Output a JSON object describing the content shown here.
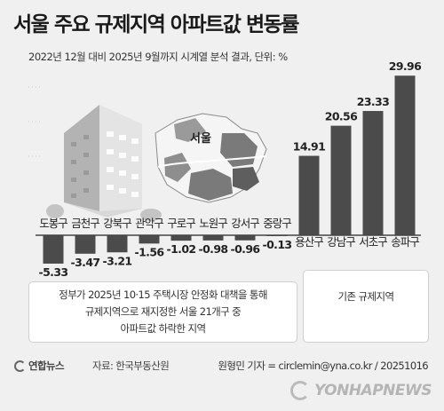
{
  "header": {
    "title": "서울 주요 규제지역 아파트값 변동률",
    "subtitle": "2022년 12월 대비 2025년 9월까지 시계열 분석 결과, 단위: %"
  },
  "colors": {
    "bar": "#4b4b4b",
    "baseline": "#444444",
    "building": "#bdbdbd",
    "map": "#8a8a8a",
    "map_highlight": "#f2f2f2"
  },
  "illustration": {
    "map_label": "서울",
    "map_icon": "seoul-map-icon",
    "building_icon": "apartment-building-icon"
  },
  "chart_data": {
    "type": "bar",
    "title": "서울 주요 규제지역 아파트값 변동률",
    "subtitle": "2022년 12월 대비 2025년 9월까지 시계열 분석 결과, 단위: %",
    "categories": [
      "도봉구",
      "금천구",
      "강북구",
      "관악구",
      "구로구",
      "노원구",
      "강서구",
      "중랑구",
      "용산구",
      "강남구",
      "서초구",
      "송파구"
    ],
    "values": [
      -5.33,
      -3.47,
      -3.21,
      -1.56,
      -1.02,
      -0.98,
      -0.96,
      -0.13,
      14.91,
      20.56,
      23.33,
      29.96
    ],
    "value_labels": [
      "-5.33",
      "-3.47",
      "-3.21",
      "-1.56",
      "-1.02",
      "-0.98",
      "-0.96",
      "-0.13",
      "14.91",
      "20.56",
      "23.33",
      "29.96"
    ],
    "ylim": [
      -6,
      30
    ],
    "grid": false,
    "xlabel": "",
    "ylabel": ""
  },
  "notes": {
    "left": "정부가 2025년 10·15 주택시장 안정화 대책을 통해\n규제지역으로 재지정한 서울 21개구 중\n아파트값 하락한 지역",
    "right": "기존 규제지역"
  },
  "footer": {
    "logo": "연합뉴스",
    "source": "자료: 한국부동산원",
    "credit": "원형민 기자 = circlemin@yna.co.kr / 20251016"
  },
  "watermark": "YONHAPNEWS"
}
